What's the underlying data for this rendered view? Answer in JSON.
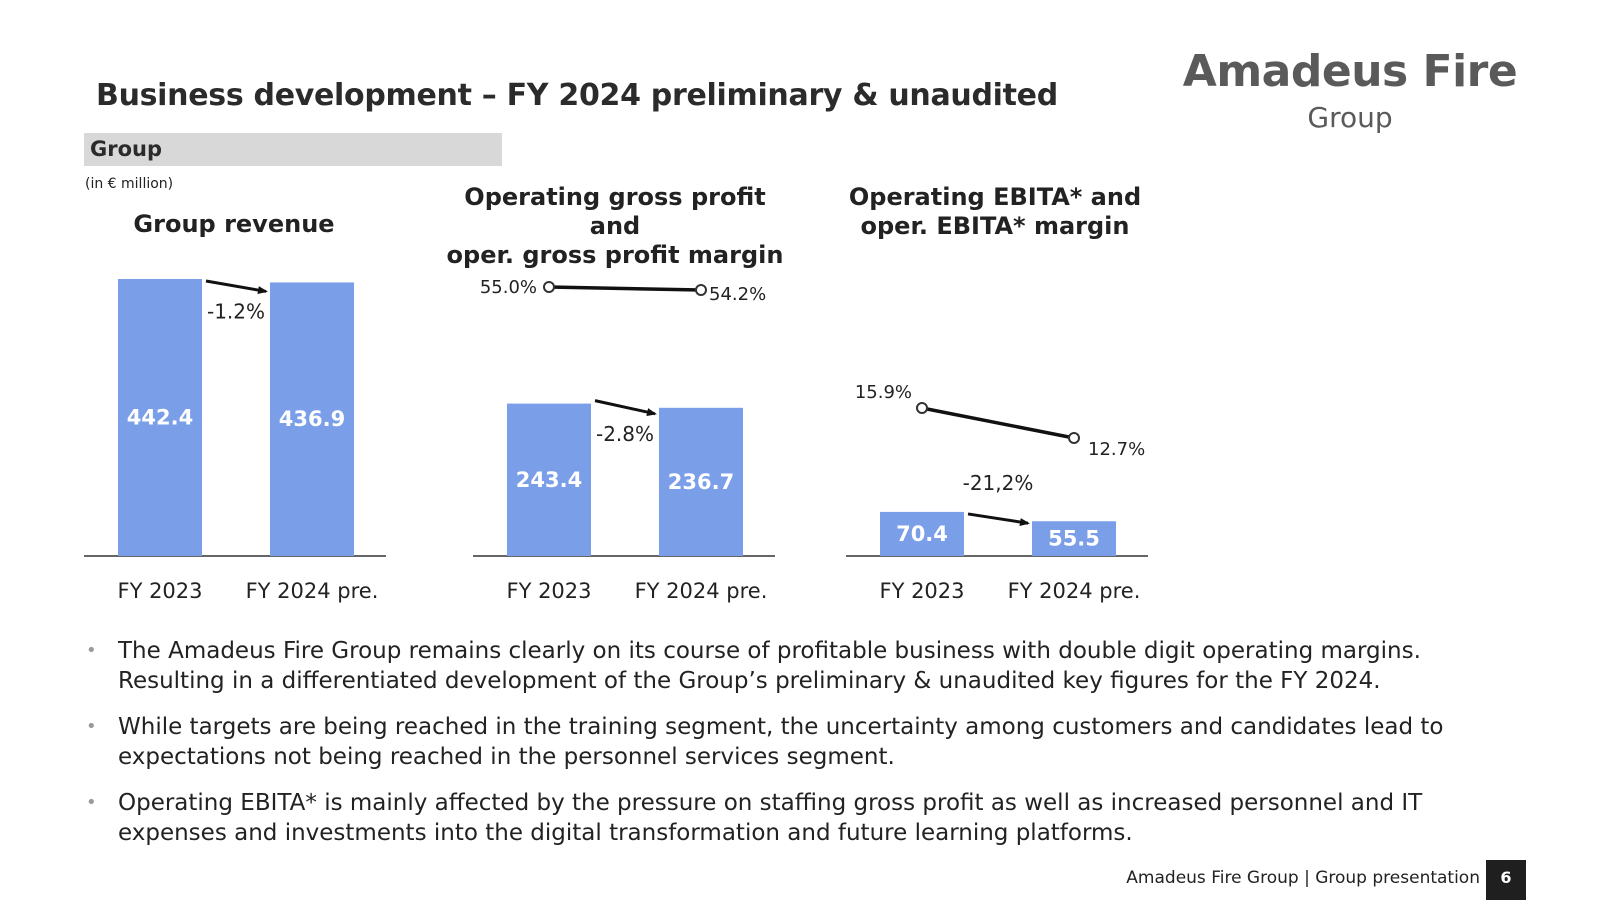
{
  "title": "Business development – FY 2024 preliminary & unaudited",
  "logo": {
    "name": "Amadeus Fire",
    "sub": "Group"
  },
  "section": "Group",
  "unit_note": "(in € million)",
  "chart_titles": [
    "Group revenue",
    "Operating gross profit and\noper. gross profit margin",
    "Operating EBITA* and\noper. EBITA* margin"
  ],
  "chart_data": [
    {
      "type": "bar",
      "title": "Group revenue",
      "categories": [
        "FY 2023",
        "FY 2024 pre."
      ],
      "values": [
        442.4,
        436.9
      ],
      "value_labels": [
        "442.4",
        "436.9"
      ],
      "change_label": "-1.2%",
      "bar_color": "#7a9ee8",
      "ylim": [
        0,
        442.4
      ]
    },
    {
      "type": "bar",
      "title": "Operating gross profit and oper. gross profit margin",
      "categories": [
        "FY 2023",
        "FY 2024 pre."
      ],
      "values": [
        243.4,
        236.7
      ],
      "value_labels": [
        "243.4",
        "236.7"
      ],
      "change_label": "-2.8%",
      "bar_color": "#7a9ee8",
      "ylim": [
        0,
        442.4
      ],
      "margin_series": {
        "values": [
          55.0,
          54.2
        ],
        "labels": [
          "55.0%",
          "54.2%"
        ]
      }
    },
    {
      "type": "bar",
      "title": "Operating EBITA* and oper. EBITA* margin",
      "categories": [
        "FY 2023",
        "FY 2024 pre."
      ],
      "values": [
        70.4,
        55.5
      ],
      "value_labels": [
        "70.4",
        "55.5"
      ],
      "change_label": "-21,2%",
      "bar_color": "#7a9ee8",
      "ylim": [
        0,
        442.4
      ],
      "margin_series": {
        "values": [
          15.9,
          12.7
        ],
        "labels": [
          "15.9%",
          "12.7%"
        ]
      }
    }
  ],
  "bullets": [
    "The Amadeus Fire Group remains clearly on its course of profitable business with double digit operating margins. Resulting in a differentiated development of the Group’s preliminary & unaudited key figures for the FY 2024.",
    "While targets are being reached in the training segment, the uncertainty among customers and candidates lead to expectations not being reached in the personnel services segment.",
    "Operating EBITA* is mainly affected by the pressure on staffing gross profit as well as increased personnel and IT expenses and investments into the digital transformation and future learning platforms."
  ],
  "footer": "Amadeus Fire Group  |  Group presentation",
  "page_number": "6"
}
